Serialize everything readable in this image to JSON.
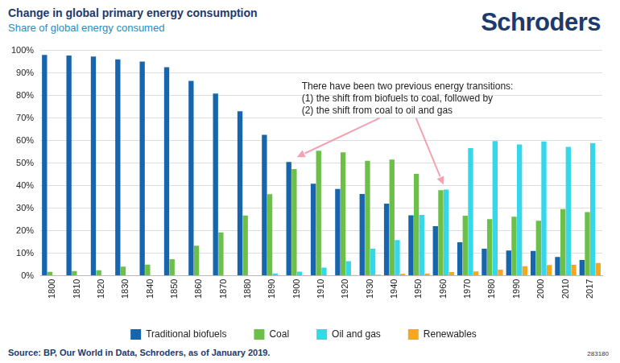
{
  "chart_data": {
    "type": "bar",
    "title": "Change in global primary energy consumption",
    "subtitle": "Share of global energy consumed",
    "logo_text": "Schroders",
    "source": "Source: BP, Our World in Data, Schroders, as of January 2019.",
    "footnote_code": "283180",
    "annotation": {
      "text": [
        "There have been two previous energy transitions:",
        "(1) the shift from biofuels to coal, followed by",
        "(2) the shift from coal to oil and gas"
      ],
      "arrow_targets": [
        "1900",
        "1960"
      ]
    },
    "categories": [
      "1800",
      "1810",
      "1820",
      "1830",
      "1840",
      "1850",
      "1860",
      "1870",
      "1880",
      "1890",
      "1900",
      "1910",
      "1920",
      "1930",
      "1940",
      "1950",
      "1960",
      "1970",
      "1980",
      "1990",
      "2000",
      "2010",
      "2017"
    ],
    "series": [
      {
        "name": "Traditional biofuels",
        "color": "#1766ad",
        "values": [
          98,
          97.7,
          97.3,
          96,
          95,
          92.5,
          86.5,
          80.8,
          73,
          62.5,
          50.5,
          40.8,
          38.5,
          36.3,
          32,
          26.8,
          22,
          14.8,
          12,
          11.2,
          11,
          8.3,
          7
        ]
      },
      {
        "name": "Coal",
        "color": "#6cc04a",
        "values": [
          1.7,
          2.1,
          2.4,
          4,
          4.9,
          7.3,
          13.3,
          19.2,
          26.7,
          36.2,
          47.3,
          55.5,
          54.8,
          51,
          51.5,
          45.2,
          38,
          26.6,
          25.1,
          26.2,
          24.4,
          29.6,
          28.2
        ]
      },
      {
        "name": "Oil and gas",
        "color": "#36d7e8",
        "values": [
          0,
          0,
          0,
          0,
          0,
          0,
          0,
          0,
          0.2,
          1,
          1.8,
          3.6,
          6.4,
          12,
          15.8,
          27,
          38.2,
          56.6,
          59.8,
          58.2,
          59.6,
          57.2,
          58.9
        ]
      },
      {
        "name": "Renewables",
        "color": "#f5a623",
        "values": [
          0,
          0,
          0,
          0,
          0,
          0,
          0,
          0,
          0,
          0,
          0.1,
          0.2,
          0.3,
          0.5,
          0.8,
          1,
          1.6,
          1.9,
          2.7,
          4.2,
          4.7,
          4.8,
          5.6
        ]
      }
    ],
    "ylim": [
      0,
      100
    ],
    "yticks": [
      {
        "value": 0,
        "label": "0%"
      },
      {
        "value": 10,
        "label": "10%"
      },
      {
        "value": 20,
        "label": "20%"
      },
      {
        "value": 30,
        "label": "30%"
      },
      {
        "value": 40,
        "label": "40%"
      },
      {
        "value": 50,
        "label": "50%"
      },
      {
        "value": 60,
        "label": "60%"
      },
      {
        "value": 70,
        "label": "70%"
      },
      {
        "value": 80,
        "label": "80%"
      },
      {
        "value": 90,
        "label": "90%"
      },
      {
        "value": 100,
        "label": "100%"
      }
    ],
    "grid": true,
    "legend": "bottom"
  }
}
